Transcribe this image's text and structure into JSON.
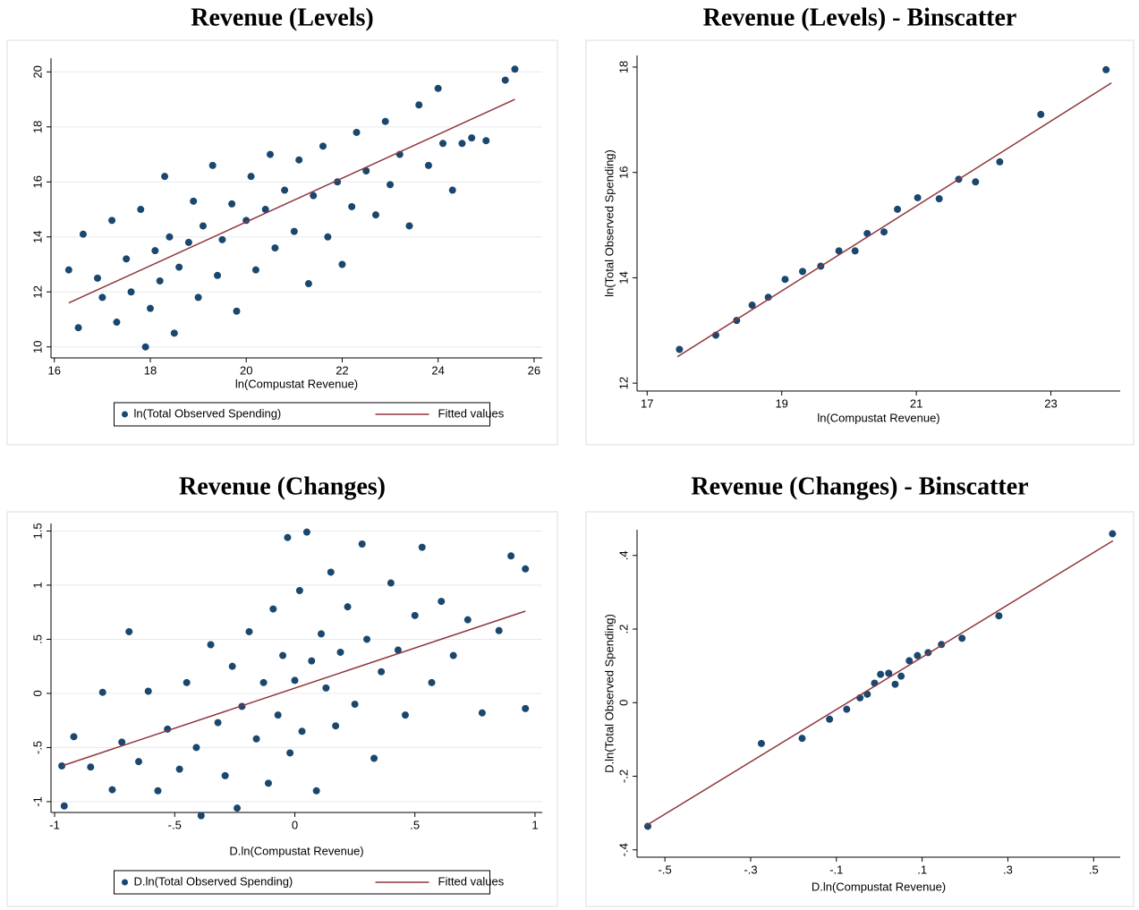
{
  "chart_data": [
    {
      "type": "scatter",
      "title": "Revenue (Levels)",
      "x_label": "ln(Compustat Revenue)",
      "xlim": [
        15.93,
        26.17
      ],
      "ylim": [
        9.6,
        20.5
      ],
      "xticks": [
        16,
        18,
        20,
        22,
        24,
        26
      ],
      "yticks": [
        10,
        12,
        14,
        16,
        18,
        20
      ],
      "grid": true,
      "legend": "bottom",
      "series": [
        {
          "name": "ln(Total Observed Spending)",
          "color": "#1a476f",
          "style": "markers",
          "x": [
            16.3,
            16.5,
            16.6,
            16.9,
            17.0,
            17.2,
            17.3,
            17.5,
            17.6,
            17.8,
            17.9,
            18.0,
            18.1,
            18.2,
            18.3,
            18.4,
            18.5,
            18.6,
            18.8,
            18.9,
            19.0,
            19.1,
            19.3,
            19.4,
            19.5,
            19.7,
            19.8,
            20.0,
            20.1,
            20.2,
            20.4,
            20.5,
            20.6,
            20.8,
            21.0,
            21.1,
            21.3,
            21.4,
            21.6,
            21.7,
            21.9,
            22.0,
            22.2,
            22.3,
            22.5,
            22.7,
            22.9,
            23.0,
            23.2,
            23.4,
            23.6,
            23.8,
            24.0,
            24.1,
            24.3,
            24.5,
            24.7,
            25.0,
            25.4,
            25.6
          ],
          "values": [
            12.8,
            10.7,
            14.1,
            12.5,
            11.8,
            14.6,
            10.9,
            13.2,
            12.0,
            15.0,
            10.0,
            11.4,
            13.5,
            12.4,
            16.2,
            14.0,
            10.5,
            12.9,
            13.8,
            15.3,
            11.8,
            14.4,
            16.6,
            12.6,
            13.9,
            15.2,
            11.3,
            14.6,
            16.2,
            12.8,
            15.0,
            17.0,
            13.6,
            15.7,
            14.2,
            16.8,
            12.3,
            15.5,
            17.3,
            14.0,
            16.0,
            13.0,
            15.1,
            17.8,
            16.4,
            14.8,
            18.2,
            15.9,
            17.0,
            14.4,
            18.8,
            16.6,
            19.4,
            17.4,
            15.7,
            17.4,
            17.6,
            17.5,
            19.7,
            20.1
          ]
        },
        {
          "name": "Fitted values",
          "color": "#90353b",
          "style": "line",
          "x": [
            16.3,
            25.6
          ],
          "values": [
            11.6,
            19.0
          ]
        }
      ]
    },
    {
      "type": "scatter",
      "title": "Revenue (Levels) - Binscatter",
      "x_label": "ln(Compustat Revenue)",
      "y_label": "ln(Total Observed Spending)",
      "xlim": [
        16.85,
        24.03
      ],
      "ylim": [
        11.85,
        18.22
      ],
      "xticks": [
        17,
        19,
        21,
        23
      ],
      "yticks": [
        12,
        14,
        16,
        18
      ],
      "grid": false,
      "series": [
        {
          "color": "#1a476f",
          "style": "markers",
          "x": [
            17.48,
            18.02,
            18.33,
            18.56,
            18.8,
            19.05,
            19.31,
            19.58,
            19.85,
            20.09,
            20.27,
            20.52,
            20.72,
            21.02,
            21.34,
            21.63,
            21.88,
            22.24,
            22.85,
            23.82
          ],
          "values": [
            12.64,
            12.91,
            13.19,
            13.48,
            13.63,
            13.97,
            14.12,
            14.22,
            14.51,
            14.51,
            14.84,
            14.87,
            15.3,
            15.52,
            15.5,
            15.87,
            15.82,
            16.2,
            17.1,
            17.95
          ]
        },
        {
          "color": "#90353b",
          "style": "line",
          "x": [
            17.45,
            23.9
          ],
          "values": [
            12.5,
            17.7
          ]
        }
      ]
    },
    {
      "type": "scatter",
      "title": "Revenue (Changes)",
      "x_label": "D.ln(Compustat Revenue)",
      "xlim": [
        -1.015,
        1.03
      ],
      "ylim": [
        -1.1,
        1.57
      ],
      "xticks": [
        -1,
        {
          "value": -0.5,
          "label": "-.5"
        },
        0,
        {
          "value": 0.5,
          "label": ".5"
        },
        1
      ],
      "yticks": [
        -1,
        {
          "value": -0.5,
          "label": "-.5"
        },
        0,
        {
          "value": 0.5,
          "label": ".5"
        },
        1,
        1.5
      ],
      "grid": true,
      "legend": "bottom",
      "series": [
        {
          "name": "D.ln(Total Observed Spending)",
          "color": "#1a476f",
          "style": "markers",
          "x": [
            -0.97,
            -0.96,
            -0.92,
            -0.85,
            -0.8,
            -0.76,
            -0.72,
            -0.69,
            -0.65,
            -0.61,
            -0.57,
            -0.53,
            -0.48,
            -0.45,
            -0.41,
            -0.39,
            -0.35,
            -0.32,
            -0.29,
            -0.26,
            -0.24,
            -0.22,
            -0.19,
            -0.16,
            -0.13,
            -0.11,
            -0.09,
            -0.07,
            -0.05,
            -0.03,
            -0.02,
            0.0,
            0.02,
            0.03,
            0.05,
            0.07,
            0.09,
            0.11,
            0.13,
            0.15,
            0.17,
            0.19,
            0.22,
            0.25,
            0.28,
            0.3,
            0.33,
            0.36,
            0.4,
            0.43,
            0.46,
            0.5,
            0.53,
            0.57,
            0.61,
            0.66,
            0.72,
            0.78,
            0.85,
            0.9,
            0.96,
            0.96
          ],
          "values": [
            -0.67,
            -1.04,
            -0.4,
            -0.68,
            0.01,
            -0.89,
            -0.45,
            0.57,
            -0.63,
            0.02,
            -0.9,
            -0.33,
            -0.7,
            0.1,
            -0.5,
            -1.13,
            0.45,
            -0.27,
            -0.76,
            0.25,
            -1.06,
            -0.12,
            0.57,
            -0.42,
            0.1,
            -0.83,
            0.78,
            -0.2,
            0.35,
            1.44,
            -0.55,
            0.12,
            0.95,
            -0.35,
            1.49,
            0.3,
            -0.9,
            0.55,
            0.05,
            1.12,
            -0.3,
            0.38,
            0.8,
            -0.1,
            1.38,
            0.5,
            -0.6,
            0.2,
            1.02,
            0.4,
            -0.2,
            0.72,
            1.35,
            0.1,
            0.85,
            0.35,
            0.68,
            -0.18,
            0.58,
            1.27,
            -0.14,
            1.15
          ]
        },
        {
          "name": "Fitted values",
          "color": "#90353b",
          "style": "line",
          "x": [
            -0.97,
            0.96
          ],
          "values": [
            -0.67,
            0.76
          ]
        }
      ]
    },
    {
      "type": "scatter",
      "title": "Revenue (Changes) - Binscatter",
      "x_label": "D.ln(Compustat Revenue)",
      "y_label": "D.ln(Total Observed Spending)",
      "xlim": [
        -0.565,
        0.562
      ],
      "ylim": [
        -0.42,
        0.47
      ],
      "xticks": [
        {
          "value": -0.5,
          "label": "-.5"
        },
        {
          "value": -0.3,
          "label": "-.3"
        },
        {
          "value": -0.1,
          "label": "-.1"
        },
        {
          "value": 0.1,
          "label": ".1"
        },
        {
          "value": 0.3,
          "label": ".3"
        },
        {
          "value": 0.5,
          "label": ".5"
        }
      ],
      "yticks": [
        {
          "value": -0.4,
          "label": "-.4"
        },
        {
          "value": -0.2,
          "label": "-.2"
        },
        0,
        {
          "value": 0.2,
          "label": ".2"
        },
        {
          "value": 0.4,
          "label": ".4"
        }
      ],
      "grid": false,
      "series": [
        {
          "color": "#1a476f",
          "style": "markers",
          "x": [
            -0.54,
            -0.275,
            -0.18,
            -0.116,
            -0.076,
            -0.045,
            -0.028,
            -0.011,
            0.003,
            0.022,
            0.037,
            0.051,
            0.07,
            0.089,
            0.114,
            0.145,
            0.193,
            0.279,
            0.544
          ],
          "values": [
            -0.336,
            -0.111,
            -0.097,
            -0.045,
            -0.018,
            0.013,
            0.023,
            0.053,
            0.077,
            0.08,
            0.05,
            0.072,
            0.114,
            0.128,
            0.136,
            0.158,
            0.175,
            0.236,
            0.459
          ]
        },
        {
          "color": "#90353b",
          "style": "line",
          "x": [
            -0.545,
            0.545
          ],
          "values": [
            -0.335,
            0.44
          ]
        }
      ]
    }
  ]
}
